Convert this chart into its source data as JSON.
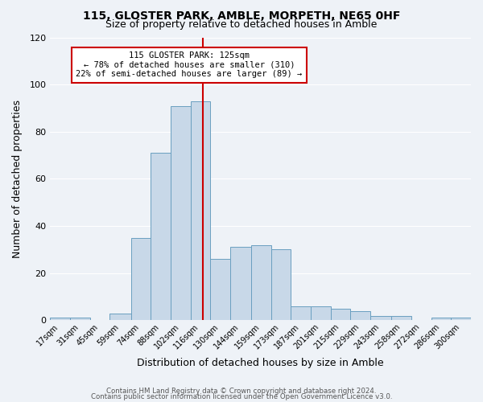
{
  "title": "115, GLOSTER PARK, AMBLE, MORPETH, NE65 0HF",
  "subtitle": "Size of property relative to detached houses in Amble",
  "xlabel": "Distribution of detached houses by size in Amble",
  "ylabel": "Number of detached properties",
  "bar_color": "#c8d8e8",
  "bar_edge_color": "#6a9fc0",
  "bins": [
    17,
    31,
    45,
    59,
    74,
    88,
    102,
    116,
    130,
    144,
    159,
    173,
    187,
    201,
    215,
    229,
    243,
    258,
    272,
    286,
    300
  ],
  "heights": [
    1,
    1,
    0,
    3,
    35,
    71,
    91,
    93,
    26,
    31,
    32,
    30,
    6,
    6,
    5,
    4,
    2,
    2,
    0,
    1,
    1
  ],
  "bin_labels": [
    "17sqm",
    "31sqm",
    "45sqm",
    "59sqm",
    "74sqm",
    "88sqm",
    "102sqm",
    "116sqm",
    "130sqm",
    "144sqm",
    "159sqm",
    "173sqm",
    "187sqm",
    "201sqm",
    "215sqm",
    "229sqm",
    "243sqm",
    "258sqm",
    "272sqm",
    "286sqm",
    "300sqm"
  ],
  "ylim": [
    0,
    120
  ],
  "yticks": [
    0,
    20,
    40,
    60,
    80,
    100,
    120
  ],
  "property_line_x": 125,
  "property_line_color": "#cc0000",
  "annotation_title": "115 GLOSTER PARK: 125sqm",
  "annotation_line1": "← 78% of detached houses are smaller (310)",
  "annotation_line2": "22% of semi-detached houses are larger (89) →",
  "annotation_box_color": "#ffffff",
  "annotation_box_edge_color": "#cc0000",
  "background_color": "#eef2f7",
  "grid_color": "#ffffff",
  "footer1": "Contains HM Land Registry data © Crown copyright and database right 2024.",
  "footer2": "Contains public sector information licensed under the Open Government Licence v3.0."
}
